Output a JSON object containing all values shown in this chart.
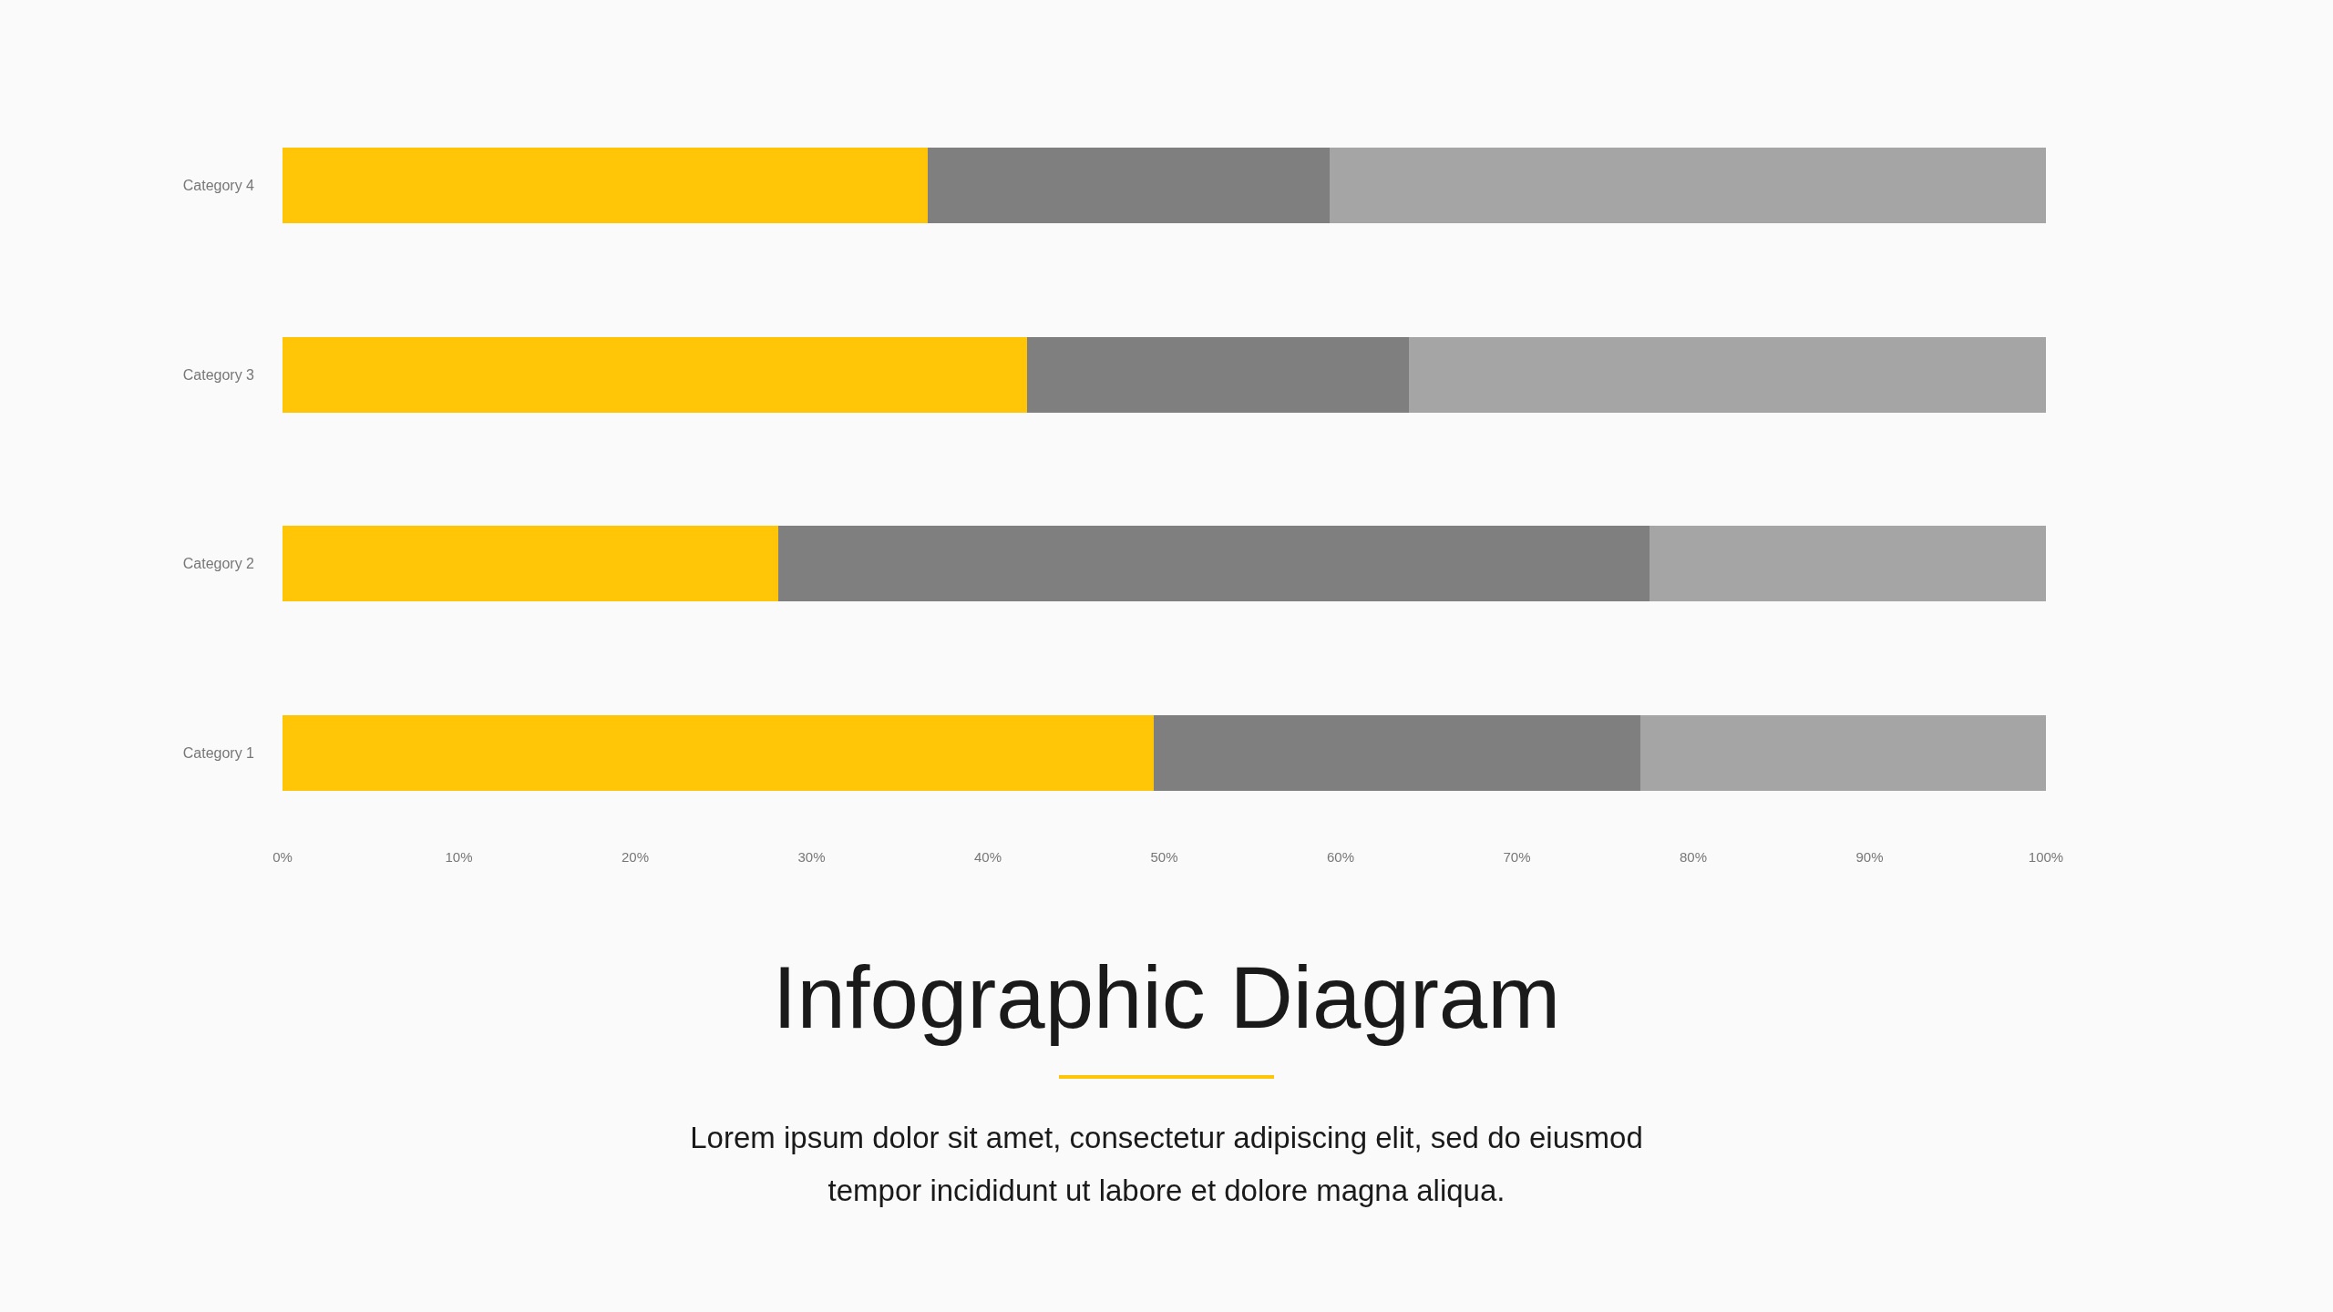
{
  "chart_data": {
    "type": "bar",
    "orientation": "horizontal",
    "stacked": true,
    "title": "Infographic Diagram",
    "subtitle": "Lorem ipsum dolor sit amet, consectetur adipiscing elit, sed do eiusmod tempor incididunt ut labore et dolore magna aliqua.",
    "categories": [
      "Category 4",
      "Category 3",
      "Category 2",
      "Category 1"
    ],
    "series": [
      {
        "color": "#ffc506",
        "values": [
          36.6,
          42.2,
          28.1,
          49.4
        ]
      },
      {
        "color": "#7f7f7f",
        "values": [
          22.8,
          21.7,
          49.4,
          27.6
        ]
      },
      {
        "color": "#a5a5a5",
        "values": [
          40.6,
          36.1,
          22.5,
          23.0
        ]
      }
    ],
    "xlim": [
      0,
      100
    ],
    "xticks": [
      {
        "value": 0,
        "label": "0%"
      },
      {
        "value": 10,
        "label": "10%"
      },
      {
        "value": 20,
        "label": "20%"
      },
      {
        "value": 30,
        "label": "30%"
      },
      {
        "value": 40,
        "label": "40%"
      },
      {
        "value": 50,
        "label": "50%"
      },
      {
        "value": 60,
        "label": "60%"
      },
      {
        "value": 70,
        "label": "70%"
      },
      {
        "value": 80,
        "label": "80%"
      },
      {
        "value": 90,
        "label": "90%"
      },
      {
        "value": 100,
        "label": "100%"
      }
    ],
    "grid": false
  }
}
